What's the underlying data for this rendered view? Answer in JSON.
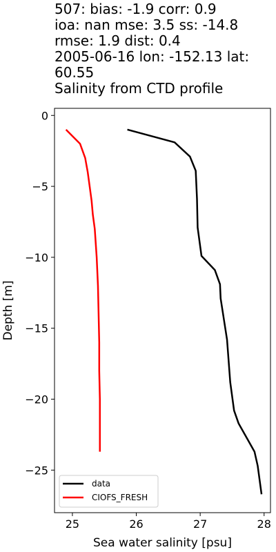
{
  "title_lines": [
    "507: bias: -1.9  corr: 0.9",
    "ioa: nan  mse: 3.5  ss: -14.8",
    "rmse: 1.9  dist: 0.4",
    "2005-06-16 lon: -152.13 lat:",
    "60.55",
    "Salinity from CTD profile"
  ],
  "chart_data": {
    "type": "line",
    "title": "507: bias: -1.9  corr: 0.9 ioa: nan  mse: 3.5  ss: -14.8 rmse: 1.9  dist: 0.4 2005-06-16 lon: -152.13 lat: 60.55 Salinity from CTD profile",
    "xlabel": "Sea water salinity [psu]",
    "ylabel": "Depth [m]",
    "xlim": [
      24.72,
      28.1
    ],
    "ylim": [
      -28.0,
      0.5
    ],
    "xticks": [
      25,
      26,
      27,
      28
    ],
    "yticks": [
      0,
      -5,
      -10,
      -15,
      -20,
      -25
    ],
    "xtick_labels": [
      "25",
      "26",
      "27",
      "28"
    ],
    "ytick_labels": [
      "0",
      "−5",
      "−10",
      "−15",
      "−20",
      "−25"
    ],
    "grid": false,
    "legend_position": "lower-left",
    "series": [
      {
        "name": "data",
        "color": "#000000",
        "points": [
          [
            25.86,
            -1.0
          ],
          [
            26.6,
            -1.9
          ],
          [
            26.84,
            -2.9
          ],
          [
            26.93,
            -3.9
          ],
          [
            26.95,
            -5.9
          ],
          [
            26.96,
            -7.9
          ],
          [
            27.02,
            -9.9
          ],
          [
            27.23,
            -10.9
          ],
          [
            27.31,
            -11.9
          ],
          [
            27.32,
            -12.9
          ],
          [
            27.42,
            -15.8
          ],
          [
            27.47,
            -18.8
          ],
          [
            27.53,
            -20.8
          ],
          [
            27.6,
            -21.7
          ],
          [
            27.85,
            -23.7
          ],
          [
            27.9,
            -24.7
          ],
          [
            27.93,
            -25.7
          ],
          [
            27.96,
            -26.7
          ]
        ]
      },
      {
        "name": "CIOFS_FRESH",
        "color": "#ff0000",
        "points": [
          [
            24.9,
            -1.0
          ],
          [
            25.12,
            -2.0
          ],
          [
            25.2,
            -3.0
          ],
          [
            25.24,
            -4.0
          ],
          [
            25.27,
            -5.0
          ],
          [
            25.3,
            -6.0
          ],
          [
            25.32,
            -7.0
          ],
          [
            25.35,
            -8.0
          ],
          [
            25.38,
            -10.0
          ],
          [
            25.4,
            -12.0
          ],
          [
            25.41,
            -14.0
          ],
          [
            25.42,
            -16.0
          ],
          [
            25.42,
            -18.0
          ],
          [
            25.43,
            -20.0
          ],
          [
            25.43,
            -22.0
          ],
          [
            25.43,
            -23.7
          ]
        ]
      }
    ]
  }
}
